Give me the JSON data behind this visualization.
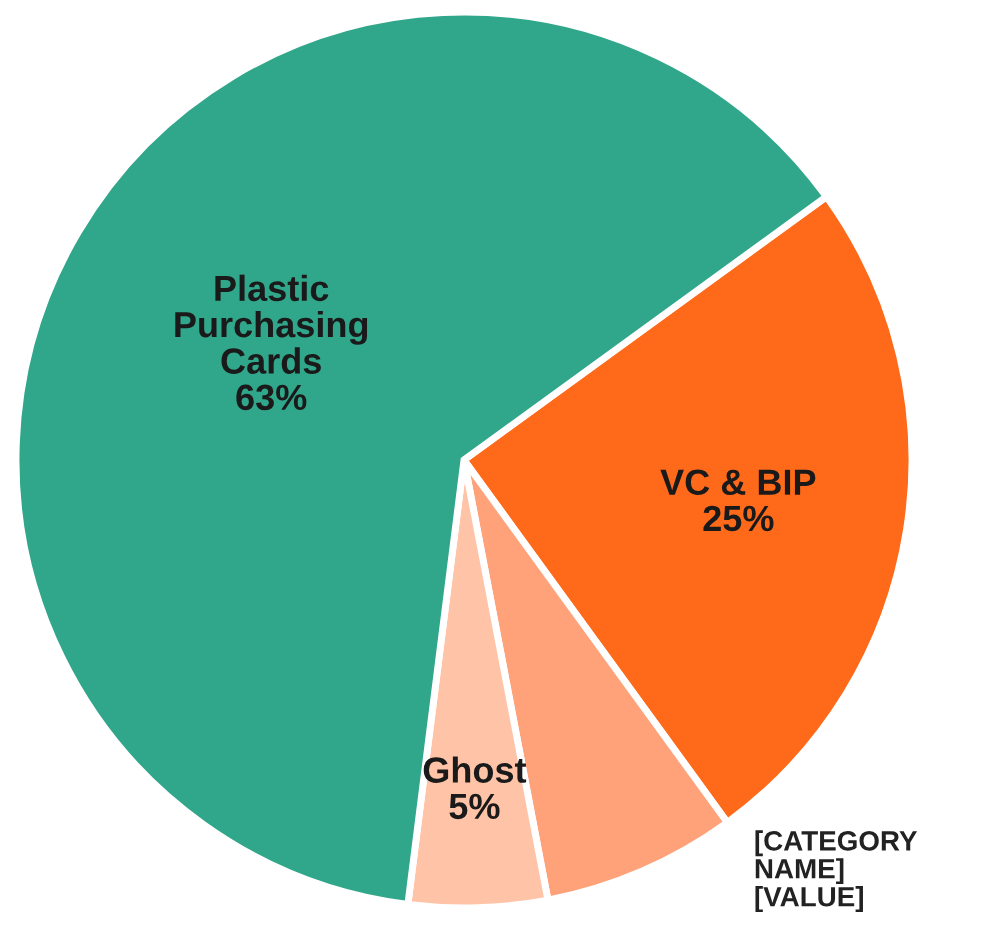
{
  "chart_data": {
    "type": "pie",
    "categories": [
      "VC & BIP",
      "[CATEGORY NAME]",
      "Ghost",
      "Plastic Purchasing Cards"
    ],
    "values": [
      25,
      7,
      5,
      63
    ],
    "value_labels": [
      "25%",
      "[VALUE]",
      "5%",
      "63%"
    ],
    "colors": [
      "#ff6a1a",
      "#ffa27a",
      "#ffc4a8",
      "#30a68b"
    ]
  }
}
